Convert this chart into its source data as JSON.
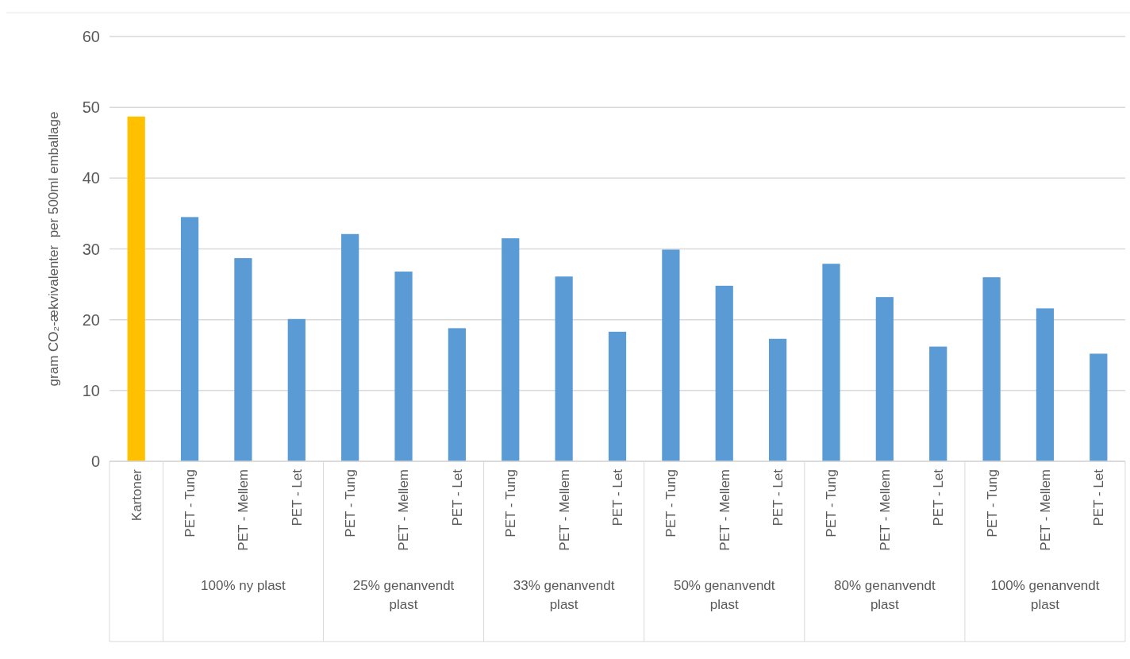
{
  "chart_data": {
    "type": "bar",
    "ylabel": "gram CO₂-ækvivalenter  per 500ml emballage",
    "categories": [
      "Kartoner",
      "PET - Tung",
      "PET - Mellem",
      "PET - Let",
      "PET - Tung",
      "PET - Mellem",
      "PET - Let",
      "PET - Tung",
      "PET - Mellem",
      "PET - Let",
      "PET - Tung",
      "PET - Mellem",
      "PET - Let",
      "PET - Tung",
      "PET - Mellem",
      "PET - Let",
      "PET - Tung",
      "PET - Mellem",
      "PET - Let"
    ],
    "values": [
      48.7,
      34.5,
      28.7,
      20.1,
      32.1,
      26.8,
      18.8,
      31.5,
      26.1,
      18.3,
      29.9,
      24.8,
      17.3,
      27.9,
      23.2,
      16.2,
      26.0,
      21.6,
      15.2
    ],
    "colors": [
      "#ffc000",
      "#5b9bd5",
      "#5b9bd5",
      "#5b9bd5",
      "#5b9bd5",
      "#5b9bd5",
      "#5b9bd5",
      "#5b9bd5",
      "#5b9bd5",
      "#5b9bd5",
      "#5b9bd5",
      "#5b9bd5",
      "#5b9bd5",
      "#5b9bd5",
      "#5b9bd5",
      "#5b9bd5",
      "#5b9bd5",
      "#5b9bd5",
      "#5b9bd5"
    ],
    "ylim": [
      0,
      60
    ],
    "yticks": [
      0,
      10,
      20,
      30,
      40,
      50,
      60
    ],
    "grid": "y",
    "annotations": [
      "100% ny plast",
      "25% genanvendt plast",
      "33% genanvendt plast",
      "50% genanvendt plast",
      "80% genanvendt plast",
      "100% genanvendt plast"
    ]
  }
}
